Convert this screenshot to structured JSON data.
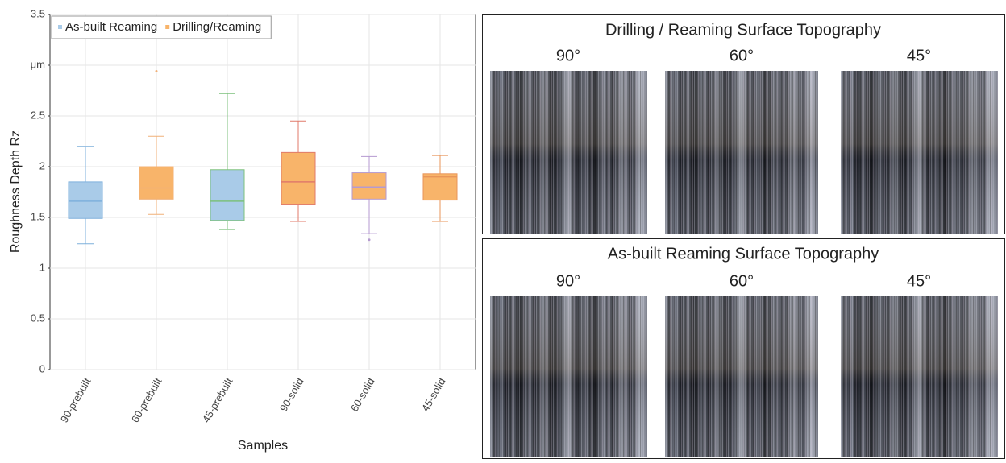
{
  "chart_data": {
    "type": "box",
    "x_label": "Samples",
    "y_label": "Roughness Depth Rz",
    "categories": [
      "90-prebuilt",
      "60-prebuilt",
      "45-prebuilt",
      "90-solid",
      "60-solid",
      "45-solid"
    ],
    "ylim": [
      0,
      3.5
    ],
    "yticks": [
      0,
      0.5,
      1,
      1.5,
      2,
      2.5,
      {
        "value": 3,
        "label": "μm"
      },
      3.5
    ],
    "grid": true,
    "legend": "upper left",
    "series": [
      {
        "name": "As-built Reaming",
        "color": "#a9cbe8",
        "boxes": [
          {
            "low": 1.24,
            "q1": 1.49,
            "median": 1.66,
            "q3": 1.85,
            "high": 2.2,
            "outliers": [],
            "whisker_color": "#7fb0dc"
          },
          null,
          {
            "low": 1.38,
            "q1": 1.47,
            "median": 1.66,
            "q3": 1.97,
            "high": 2.72,
            "outliers": [],
            "whisker_color": "#7cc07c"
          },
          null,
          null,
          null
        ]
      },
      {
        "name": "Drilling/Reaming",
        "color": "#f8b46a",
        "boxes": [
          null,
          {
            "low": 1.53,
            "q1": 1.68,
            "median": 1.79,
            "q3": 2.0,
            "high": 2.3,
            "outliers": [
              2.94
            ],
            "whisker_color": "#f0b078"
          },
          null,
          {
            "low": 1.46,
            "q1": 1.63,
            "median": 1.85,
            "q3": 2.14,
            "high": 2.45,
            "outliers": [],
            "whisker_color": "#e07a6a"
          },
          {
            "low": 1.34,
            "q1": 1.68,
            "median": 1.8,
            "q3": 1.94,
            "high": 2.1,
            "outliers": [
              1.28
            ],
            "whisker_color": "#b59ad0"
          },
          {
            "low": 1.46,
            "q1": 1.67,
            "median": 1.9,
            "q3": 1.93,
            "high": 2.11,
            "outliers": [],
            "whisker_color": "#e8955a"
          }
        ]
      }
    ]
  },
  "panels": [
    {
      "title": "Drilling / Reaming Surface Topography",
      "angles": [
        "90°",
        "60°",
        "45°"
      ]
    },
    {
      "title": "As-built Reaming Surface Topography",
      "angles": [
        "90°",
        "60°",
        "45°"
      ]
    }
  ]
}
